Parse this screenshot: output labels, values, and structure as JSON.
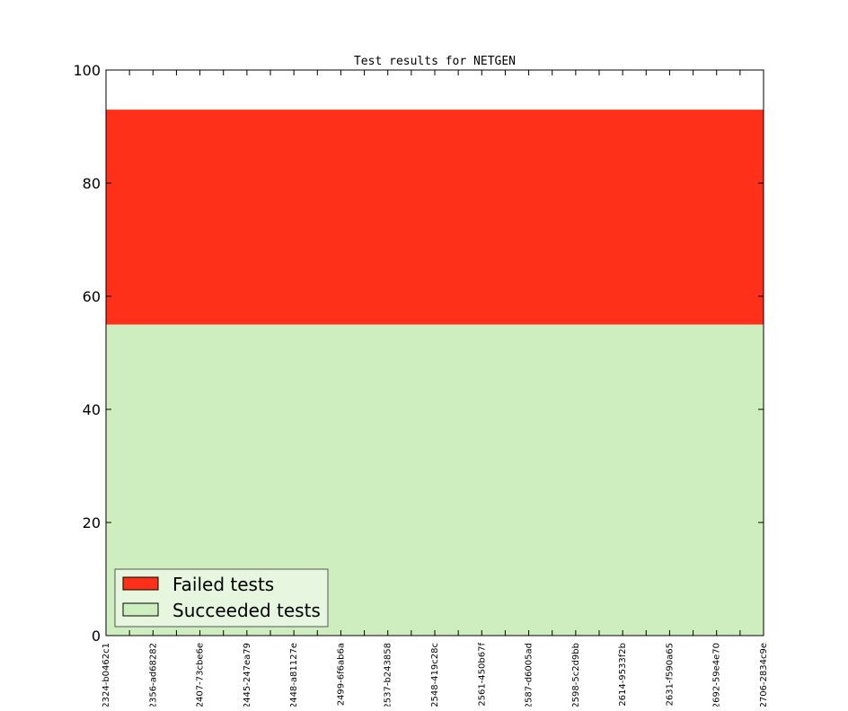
{
  "chart_data": {
    "type": "area",
    "title": "Test results for NETGEN",
    "xlabel": "",
    "ylabel": "",
    "ylim": [
      0,
      100
    ],
    "yticks": [
      "0",
      "20",
      "40",
      "60",
      "80",
      "100"
    ],
    "categories": [
      "2324-b0462c1",
      "2356-ad68282",
      "2407-73cbe6e",
      "2445-247ea79",
      "2448-a81127e",
      "2499-6f6ab6a",
      "2537-b243858",
      "2548-419c28c",
      "2561-450b67f",
      "2587-d6005ad",
      "2598-5c2d9bb",
      "2614-9533f2b",
      "2631-f590a65",
      "2692-59e4e70",
      "2706-2834c9e"
    ],
    "stacked": true,
    "series": [
      {
        "name": "Succeeded tests",
        "color": "#cfeebf",
        "values": [
          55,
          55,
          55,
          55,
          55,
          55,
          55,
          55,
          55,
          55,
          55,
          55,
          55,
          55,
          55
        ]
      },
      {
        "name": "Failed tests",
        "color": "#ff3019",
        "values": [
          38,
          38,
          38,
          38,
          38,
          38,
          38,
          38,
          38,
          38,
          38,
          38,
          38,
          38,
          38
        ]
      }
    ],
    "legend": {
      "placement": "lower-left",
      "entries": [
        "Failed tests",
        "Succeeded tests"
      ]
    },
    "grid": false
  }
}
